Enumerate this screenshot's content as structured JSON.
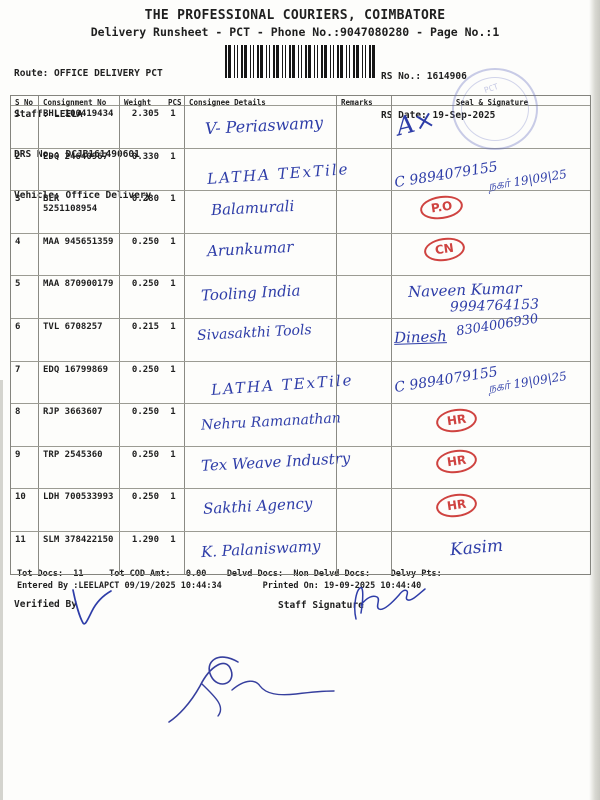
{
  "document": {
    "title": "THE PROFESSIONAL COURIERS, COIMBATORE",
    "subtitle": "Delivery Runsheet - PCT - Phone No.:9047080280 - Page No.:1",
    "meta": {
      "route_label": "Route: ",
      "route_value": "OFFICE DELIVERY PCT",
      "staff_label": "Staff: ",
      "staff_value": "LEELA",
      "drs_label": "DRS No.: ",
      "drs_value": "DCJB161490601",
      "vehicle_label": "Vehicle: ",
      "vehicle_value": "Office Delivery",
      "rs_no_label": "RS No.: ",
      "rs_no_value": "1614906",
      "rs_date_label": "RS Date: ",
      "rs_date_value": "19-Sep-2025"
    }
  },
  "table": {
    "headers": {
      "sno": "S No",
      "consignment": "Consignment No",
      "weight": "Weight",
      "pcs": "PCS",
      "consignee": "Consignee Details",
      "remarks": "Remarks",
      "seal": "Seal & Signature"
    },
    "rows": [
      {
        "sno": "1",
        "consignment": "BHL 100419434",
        "weight": "2.305",
        "pcs": "1",
        "consignee": "V- Periaswamy",
        "remarks": "",
        "seal": {
          "type": "signature",
          "lines": [
            "A×"
          ]
        }
      },
      {
        "sno": "2",
        "consignment": "EDQ 24640967",
        "weight": "0.330",
        "pcs": "1",
        "consignee": "LATHA TExTile",
        "remarks": "",
        "seal": {
          "type": "signature",
          "lines": [
            "C 9894079155",
            "நகர் 19|09|25"
          ]
        }
      },
      {
        "sno": "3",
        "consignment": "BLR 5251108954",
        "weight": "0.280",
        "pcs": "1",
        "consignee": "Balamurali",
        "remarks": "",
        "seal": {
          "type": "stamp",
          "lines": [
            "P.O"
          ]
        }
      },
      {
        "sno": "4",
        "consignment": "MAA 945651359",
        "weight": "0.250",
        "pcs": "1",
        "consignee": "Arunkumar",
        "remarks": "",
        "seal": {
          "type": "stamp",
          "lines": [
            "CN"
          ]
        }
      },
      {
        "sno": "5",
        "consignment": "MAA 870900179",
        "weight": "0.250",
        "pcs": "1",
        "consignee": "Tooling India",
        "remarks": "",
        "seal": {
          "type": "signature",
          "lines": [
            "Naveen Kumar",
            "9994764153"
          ]
        }
      },
      {
        "sno": "6",
        "consignment": "TVL 6708257",
        "weight": "0.215",
        "pcs": "1",
        "consignee": "Sivasakthi Tools",
        "remarks": "",
        "seal": {
          "type": "signature",
          "lines": [
            "Dinesh",
            "8304006930"
          ]
        }
      },
      {
        "sno": "7",
        "consignment": "EDQ 16799869",
        "weight": "0.250",
        "pcs": "1",
        "consignee": "LATHA TExTile",
        "remarks": "",
        "seal": {
          "type": "signature",
          "lines": [
            "C 9894079155",
            "நகர் 19|09|25"
          ]
        }
      },
      {
        "sno": "8",
        "consignment": "RJP 3663607",
        "weight": "0.250",
        "pcs": "1",
        "consignee": "Nehru Ramanathan",
        "remarks": "",
        "seal": {
          "type": "stamp",
          "lines": [
            "HR"
          ]
        }
      },
      {
        "sno": "9",
        "consignment": "TRP 2545360",
        "weight": "0.250",
        "pcs": "1",
        "consignee": "Tex Weave Industry",
        "remarks": "",
        "seal": {
          "type": "stamp",
          "lines": [
            "HR"
          ]
        }
      },
      {
        "sno": "10",
        "consignment": "LDH 700533993",
        "weight": "0.250",
        "pcs": "1",
        "consignee": "Sakthi Agency",
        "remarks": "",
        "seal": {
          "type": "stamp",
          "lines": [
            "HR"
          ]
        }
      },
      {
        "sno": "11",
        "consignment": "SLM 378422150",
        "weight": "1.290",
        "pcs": "1",
        "consignee": "K. Palaniswamy",
        "remarks": "",
        "seal": {
          "type": "signature",
          "lines": [
            "Kasim"
          ]
        }
      }
    ]
  },
  "footer": {
    "totals_line": "Tot Docs:  11     Tot COD Amt:   0.00    Delvd Docs:  Non Delvd Docs:    Delvy Pts:",
    "entered_line": "Entered By :LEELAPCT 09/19/2025 10:44:34        Printed On: 19-09-2025 10:44:40",
    "verified_label": "Verified By",
    "staff_label": "Staff Signature"
  },
  "colors": {
    "ink_blue": "#2e3da8",
    "stamp_red": "#cf4340",
    "print_black": "#1f1f1f"
  }
}
